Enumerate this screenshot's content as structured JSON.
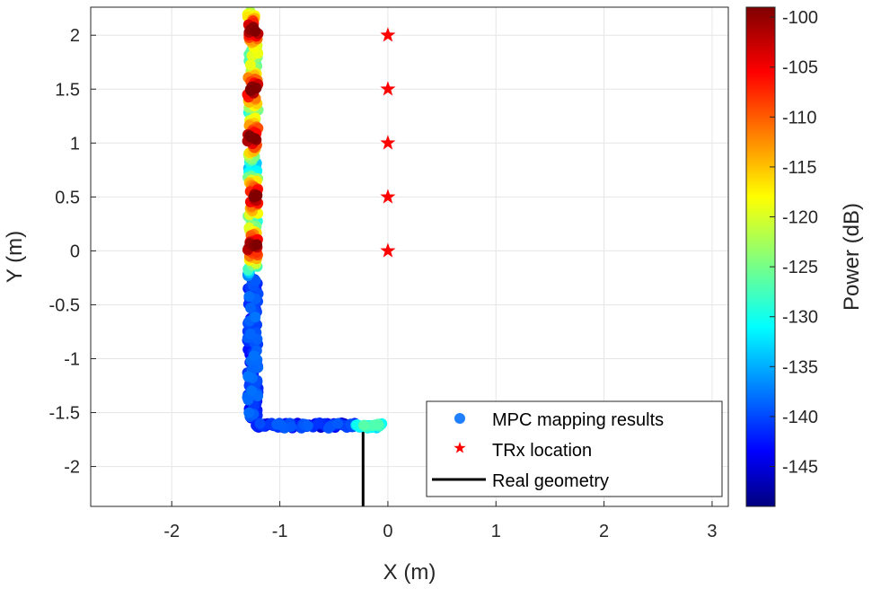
{
  "chart_data": {
    "type": "scatter",
    "xlabel": "X (m)",
    "ylabel": "Y (m)",
    "xlim": [
      -2.75,
      3.15
    ],
    "ylim": [
      -2.37,
      2.26
    ],
    "xticks": [
      -2,
      -1,
      0,
      1,
      2,
      3
    ],
    "yticks": [
      2,
      1.5,
      1,
      0.5,
      0,
      -0.5,
      -1,
      -1.5,
      -2
    ],
    "xtick_labels": [
      "-2",
      "-1",
      "0",
      "1",
      "2",
      "3"
    ],
    "ytick_labels": [
      "2",
      "1.5",
      "1",
      "0.5",
      "0",
      "-0.5",
      "-1",
      "-1.5",
      "-2"
    ],
    "grid": true,
    "colorbar": {
      "label": "Power (dB)",
      "range": [
        -149,
        -99
      ],
      "ticks": [
        -100,
        -105,
        -110,
        -115,
        -120,
        -125,
        -130,
        -135,
        -140,
        -145
      ],
      "tick_labels": [
        "-100",
        "-105",
        "-110",
        "-115",
        "-120",
        "-125",
        "-130",
        "-135",
        "-140",
        "-145"
      ],
      "colormap": "jet"
    },
    "series": [
      {
        "name": "TRx location",
        "marker": "star",
        "color": "#ff0000",
        "x": [
          0,
          0,
          0,
          0,
          0
        ],
        "y": [
          2,
          1.5,
          1,
          0.5,
          0
        ]
      },
      {
        "name": "Real geometry",
        "marker": "line",
        "color": "#000000",
        "x": [
          -1.25,
          -1.25,
          -0.23,
          -0.23
        ],
        "y": [
          2.24,
          -1.6,
          -1.6,
          -2.37
        ]
      },
      {
        "name": "MPC mapping results",
        "marker": "circle",
        "color": "#1f7fff",
        "description_segments": [
          {
            "x": -1.25,
            "y_from": 2.22,
            "y_to": -1.55,
            "power_peak_at_y": [
              2.05,
              1.5,
              1.05,
              0.5,
              0.05
            ]
          },
          {
            "y": -1.62,
            "x_from": -1.22,
            "x_to": -0.05
          }
        ]
      }
    ],
    "legend": {
      "placement": "bottom-right",
      "entries": [
        "MPC mapping results",
        "TRx location",
        "Real geometry"
      ]
    }
  }
}
